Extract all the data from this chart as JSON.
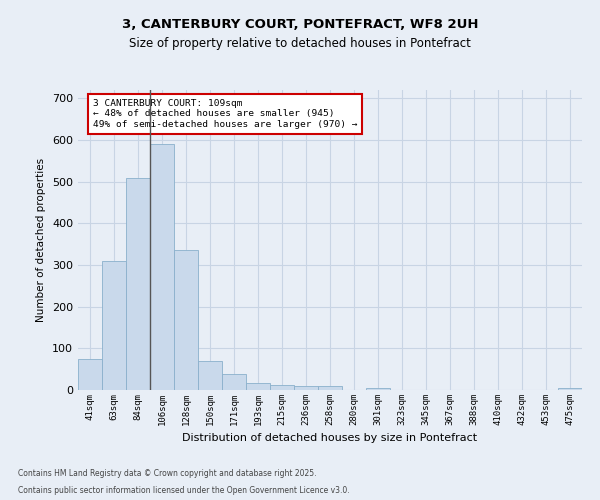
{
  "title": "3, CANTERBURY COURT, PONTEFRACT, WF8 2UH",
  "subtitle": "Size of property relative to detached houses in Pontefract",
  "xlabel": "Distribution of detached houses by size in Pontefract",
  "ylabel": "Number of detached properties",
  "categories": [
    "41sqm",
    "63sqm",
    "84sqm",
    "106sqm",
    "128sqm",
    "150sqm",
    "171sqm",
    "193sqm",
    "215sqm",
    "236sqm",
    "258sqm",
    "280sqm",
    "301sqm",
    "323sqm",
    "345sqm",
    "367sqm",
    "388sqm",
    "410sqm",
    "432sqm",
    "453sqm",
    "475sqm"
  ],
  "values": [
    75,
    310,
    510,
    590,
    335,
    70,
    38,
    18,
    11,
    9,
    9,
    0,
    6,
    0,
    0,
    0,
    0,
    0,
    0,
    0,
    4
  ],
  "bar_color": "#c9d9eb",
  "bar_edge_color": "#8ab0cc",
  "grid_color": "#c8d4e4",
  "background_color": "#e8eef6",
  "annotation_text": "3 CANTERBURY COURT: 109sqm\n← 48% of detached houses are smaller (945)\n49% of semi-detached houses are larger (970) →",
  "annotation_box_color": "#ffffff",
  "annotation_edge_color": "#cc0000",
  "vline_color": "#555555",
  "ylim": [
    0,
    720
  ],
  "yticks": [
    0,
    100,
    200,
    300,
    400,
    500,
    600,
    700
  ],
  "footer_line1": "Contains HM Land Registry data © Crown copyright and database right 2025.",
  "footer_line2": "Contains public sector information licensed under the Open Government Licence v3.0."
}
